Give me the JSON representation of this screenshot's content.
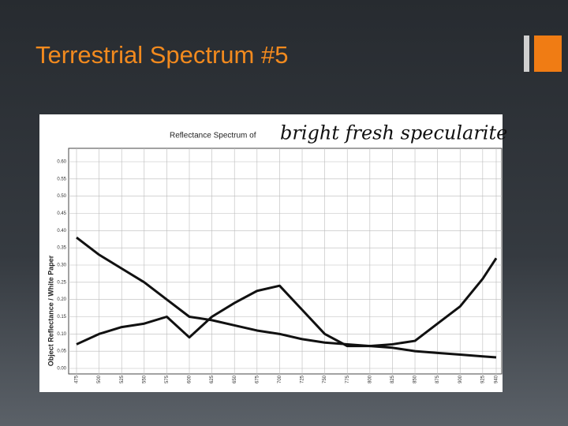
{
  "slide_title": "Terrestrial Spectrum #5",
  "chart_data": {
    "type": "line",
    "title": "Reflectance Spectrum of",
    "subtitle": "bright fresh specularite",
    "y_label": "Object Reflectance / White Paper",
    "x": [
      475,
      500,
      525,
      550,
      575,
      600,
      625,
      650,
      675,
      700,
      725,
      750,
      775,
      800,
      825,
      850,
      875,
      900,
      925,
      940
    ],
    "series": [
      {
        "color": "#111111",
        "values": [
          0.38,
          0.33,
          0.29,
          0.25,
          0.2,
          0.15,
          0.14,
          0.125,
          0.11,
          0.1,
          0.085,
          0.075,
          0.07,
          0.065,
          0.06,
          0.05,
          0.045,
          0.04,
          0.035,
          0.032
        ]
      },
      {
        "color": "#111111",
        "values": [
          0.07,
          0.1,
          0.12,
          0.13,
          0.15,
          0.09,
          0.15,
          0.19,
          0.225,
          0.24,
          0.17,
          0.1,
          0.065,
          0.065,
          0.07,
          0.08,
          0.13,
          0.18,
          0.26,
          0.32
        ]
      }
    ],
    "xlim": [
      475,
      940
    ],
    "xticks": [
      475,
      500,
      525,
      550,
      575,
      600,
      625,
      650,
      675,
      700,
      725,
      750,
      775,
      800,
      825,
      850,
      875,
      900,
      925,
      940
    ],
    "ylim": [
      0,
      0.6
    ],
    "yticks": [
      {
        "value": 0,
        "label": "0.00"
      },
      {
        "value": 0.05,
        "label": "0.05"
      },
      {
        "value": 0.1,
        "label": "0.10"
      },
      {
        "value": 0.15,
        "label": "0.15"
      },
      {
        "value": 0.2,
        "label": "0.20"
      },
      {
        "value": 0.25,
        "label": "0.25"
      },
      {
        "value": 0.3,
        "label": "0.30"
      },
      {
        "value": 0.35,
        "label": "0.35"
      },
      {
        "value": 0.4,
        "label": "0.40"
      },
      {
        "value": 0.45,
        "label": "0.45"
      },
      {
        "value": 0.5,
        "label": "0.50"
      },
      {
        "value": 0.55,
        "label": "0.55"
      },
      {
        "value": 0.6,
        "label": "0.60"
      }
    ],
    "grid": true
  }
}
